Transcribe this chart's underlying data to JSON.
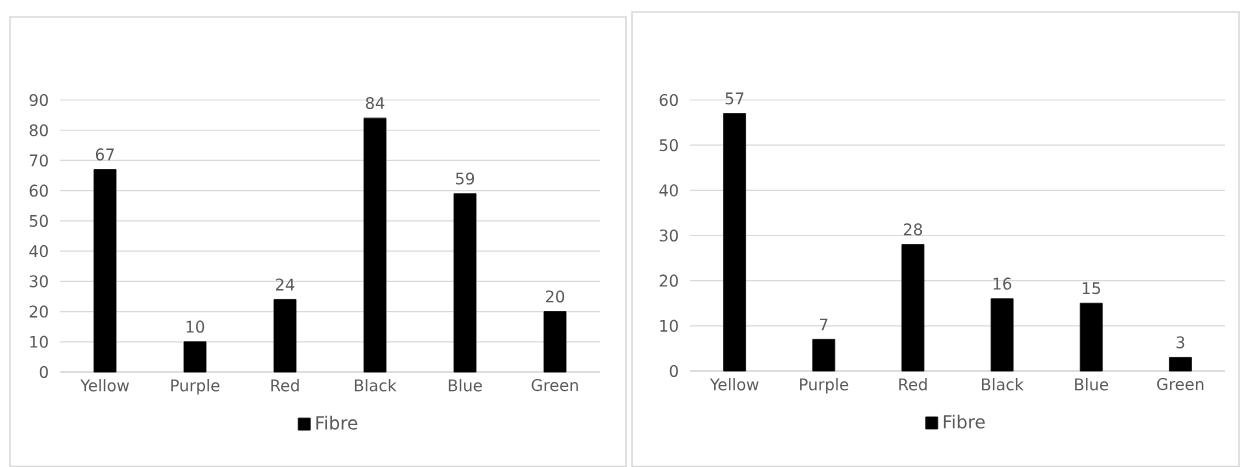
{
  "chart_data": [
    {
      "type": "bar",
      "categories": [
        "Yellow",
        "Purple",
        "Red",
        "Black",
        "Blue",
        "Green"
      ],
      "series": [
        {
          "name": "Fibre",
          "color": "#000000",
          "values": [
            67,
            10,
            24,
            84,
            59,
            20
          ]
        }
      ],
      "ylim": [
        0,
        90
      ],
      "yticks": [
        0,
        10,
        20,
        30,
        40,
        50,
        60,
        70,
        80,
        90
      ],
      "grid": "y",
      "legend": "bottom",
      "data_labels": true
    },
    {
      "type": "bar",
      "categories": [
        "Yellow",
        "Purple",
        "Red",
        "Black",
        "Blue",
        "Green"
      ],
      "series": [
        {
          "name": "Fibre",
          "color": "#000000",
          "values": [
            57,
            7,
            28,
            16,
            15,
            3
          ]
        }
      ],
      "ylim": [
        0,
        60
      ],
      "yticks": [
        0,
        10,
        20,
        30,
        40,
        50,
        60
      ],
      "grid": "y",
      "legend": "bottom",
      "data_labels": true
    }
  ]
}
